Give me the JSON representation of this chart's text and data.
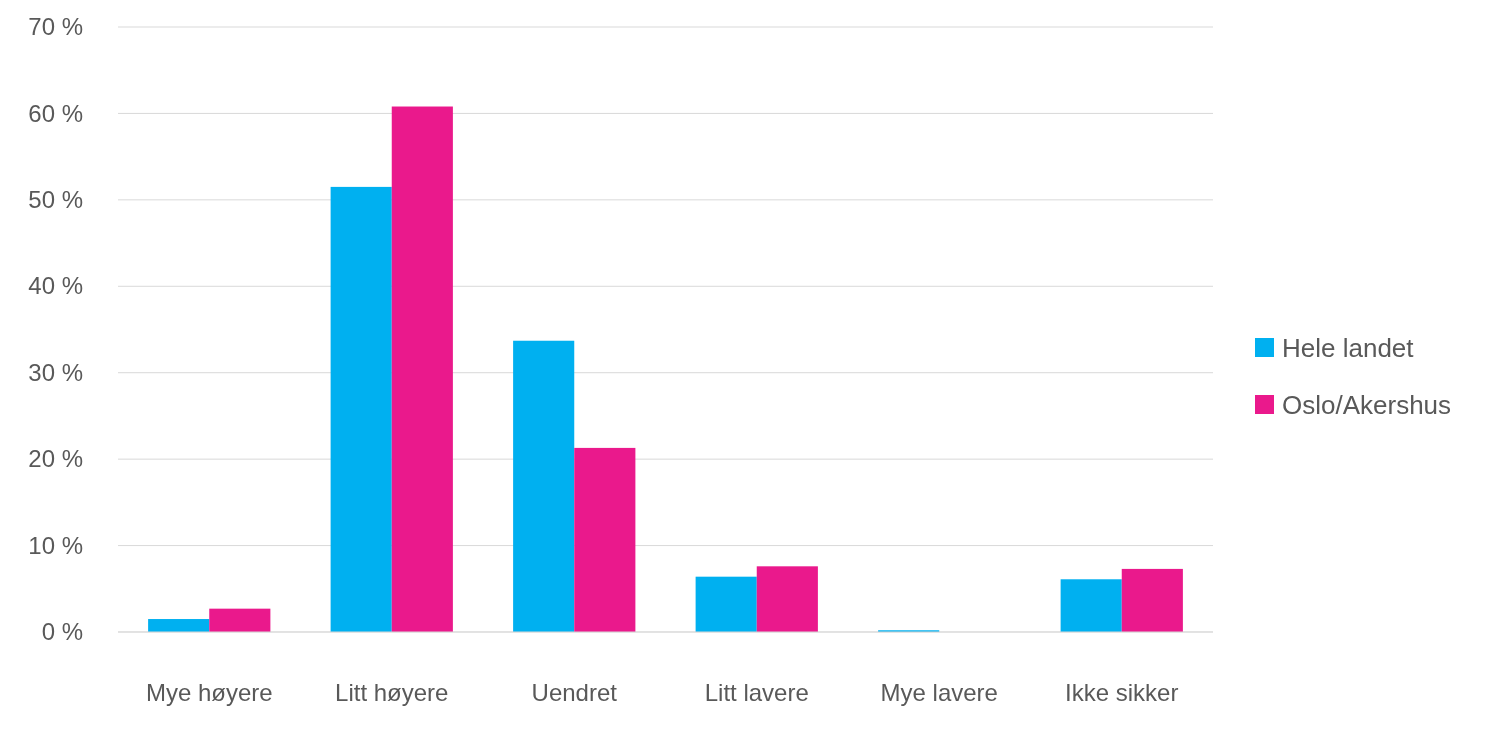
{
  "chart_data": {
    "type": "bar",
    "categories": [
      "Mye høyere",
      "Litt høyere",
      "Uendret",
      "Litt lavere",
      "Mye lavere",
      "Ikke sikker"
    ],
    "series": [
      {
        "name": "Hele landet",
        "color": "#00b0f0",
        "values": [
          1.5,
          51.5,
          33.7,
          6.4,
          0.2,
          6.1
        ]
      },
      {
        "name": "Oslo/Akershus",
        "color": "#ea198c",
        "values": [
          2.7,
          60.8,
          21.3,
          7.6,
          0,
          7.3
        ]
      }
    ],
    "ylim": [
      0,
      70
    ],
    "yticks": [
      {
        "value": 0,
        "label": "0 %"
      },
      {
        "value": 10,
        "label": "10 %"
      },
      {
        "value": 20,
        "label": "20 %"
      },
      {
        "value": 30,
        "label": "30 %"
      },
      {
        "value": 40,
        "label": "40 %"
      },
      {
        "value": 50,
        "label": "50 %"
      },
      {
        "value": 60,
        "label": "60 %"
      },
      {
        "value": 70,
        "label": "70 %"
      }
    ],
    "grid": "y",
    "legend": "right"
  }
}
